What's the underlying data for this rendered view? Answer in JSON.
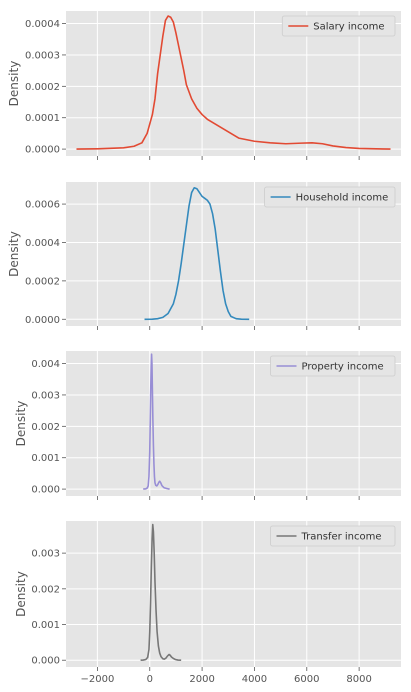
{
  "chart_data": [
    {
      "type": "line",
      "ylabel": "Density",
      "ylim": [
        -2.2e-05,
        0.00044
      ],
      "yticks": [
        0.0,
        0.0001,
        0.0002,
        0.0003,
        0.0004
      ],
      "ytick_labels": [
        "0.0000",
        "0.0001",
        "0.0002",
        "0.0003",
        "0.0004"
      ],
      "legend_position": "top-right",
      "grid": true,
      "series": [
        {
          "name": "Salary income",
          "color": "#E24A33",
          "points": [
            [
              -2800,
              0.0
            ],
            [
              -2000,
              1e-06
            ],
            [
              -1000,
              4e-06
            ],
            [
              -600,
              9e-06
            ],
            [
              -300,
              2e-05
            ],
            [
              -100,
              5e-05
            ],
            [
              100,
              0.00011
            ],
            [
              200,
              0.00016
            ],
            [
              300,
              0.00024
            ],
            [
              400,
              0.0003
            ],
            [
              500,
              0.00036
            ],
            [
              600,
              0.00041
            ],
            [
              700,
              0.000424
            ],
            [
              800,
              0.00042
            ],
            [
              900,
              0.000405
            ],
            [
              1000,
              0.00037
            ],
            [
              1100,
              0.00033
            ],
            [
              1200,
              0.00029
            ],
            [
              1300,
              0.00025
            ],
            [
              1400,
              0.000205
            ],
            [
              1600,
              0.00016
            ],
            [
              1800,
              0.00013
            ],
            [
              2000,
              0.00011
            ],
            [
              2200,
              9.5e-05
            ],
            [
              2600,
              7.5e-05
            ],
            [
              3000,
              5.5e-05
            ],
            [
              3400,
              3.5e-05
            ],
            [
              4000,
              2.5e-05
            ],
            [
              4600,
              2e-05
            ],
            [
              5200,
              1.7e-05
            ],
            [
              5800,
              1.9e-05
            ],
            [
              6200,
              2e-05
            ],
            [
              6600,
              1.7e-05
            ],
            [
              7000,
              1e-05
            ],
            [
              7500,
              5e-06
            ],
            [
              8000,
              2e-06
            ],
            [
              9200,
              0.0
            ]
          ]
        }
      ]
    },
    {
      "type": "line",
      "ylabel": "Density",
      "ylim": [
        -3.5e-05,
        0.000715
      ],
      "yticks": [
        0.0,
        0.0002,
        0.0004,
        0.0006
      ],
      "ytick_labels": [
        "0.0000",
        "0.0002",
        "0.0004",
        "0.0006"
      ],
      "legend_position": "top-right",
      "grid": true,
      "series": [
        {
          "name": "Household income",
          "color": "#348ABD",
          "points": [
            [
              -200,
              0.0
            ],
            [
              100,
              5e-07
            ],
            [
              300,
              3e-06
            ],
            [
              500,
              1e-05
            ],
            [
              700,
              3e-05
            ],
            [
              900,
              8e-05
            ],
            [
              1000,
              0.00013
            ],
            [
              1100,
              0.0002
            ],
            [
              1200,
              0.00029
            ],
            [
              1300,
              0.00039
            ],
            [
              1400,
              0.00049
            ],
            [
              1500,
              0.00059
            ],
            [
              1600,
              0.00066
            ],
            [
              1700,
              0.000685
            ],
            [
              1800,
              0.00068
            ],
            [
              1900,
              0.00066
            ],
            [
              2000,
              0.00064
            ],
            [
              2100,
              0.00063
            ],
            [
              2200,
              0.00062
            ],
            [
              2300,
              0.0006
            ],
            [
              2400,
              0.00055
            ],
            [
              2500,
              0.00047
            ],
            [
              2600,
              0.00036
            ],
            [
              2700,
              0.00025
            ],
            [
              2800,
              0.00015
            ],
            [
              2900,
              8e-05
            ],
            [
              3000,
              4e-05
            ],
            [
              3100,
              1.5e-05
            ],
            [
              3300,
              3e-06
            ],
            [
              3500,
              5e-07
            ],
            [
              3800,
              0.0
            ]
          ]
        }
      ]
    },
    {
      "type": "line",
      "ylabel": "Density",
      "ylim": [
        -0.00022,
        0.0044
      ],
      "yticks": [
        0.0,
        0.001,
        0.002,
        0.003,
        0.004
      ],
      "ytick_labels": [
        "0.000",
        "0.001",
        "0.002",
        "0.003",
        "0.004"
      ],
      "legend_position": "top-right",
      "grid": true,
      "series": [
        {
          "name": "Property income",
          "color": "#988ED5",
          "points": [
            [
              -250,
              0.0
            ],
            [
              -150,
              1e-05
            ],
            [
              -100,
              3e-05
            ],
            [
              -60,
              0.0001
            ],
            [
              -30,
              0.0004
            ],
            [
              0,
              0.0012
            ],
            [
              20,
              0.0022
            ],
            [
              40,
              0.0033
            ],
            [
              55,
              0.0039
            ],
            [
              70,
              0.0043
            ],
            [
              85,
              0.004
            ],
            [
              100,
              0.0032
            ],
            [
              120,
              0.0022
            ],
            [
              140,
              0.0014
            ],
            [
              160,
              0.0008
            ],
            [
              180,
              0.0004
            ],
            [
              200,
              0.0002
            ],
            [
              230,
              0.00012
            ],
            [
              270,
              0.0001
            ],
            [
              310,
              0.00015
            ],
            [
              350,
              0.00022
            ],
            [
              380,
              0.00025
            ],
            [
              420,
              0.0002
            ],
            [
              460,
              0.00012
            ],
            [
              500,
              8e-05
            ],
            [
              550,
              4e-05
            ],
            [
              600,
              3e-05
            ],
            [
              650,
              2e-05
            ],
            [
              700,
              1e-05
            ],
            [
              760,
              0.0
            ]
          ]
        }
      ]
    },
    {
      "type": "line",
      "ylabel": "Density",
      "xlim": [
        -3200,
        9600
      ],
      "xticks": [
        -2000,
        0,
        2000,
        4000,
        6000,
        8000
      ],
      "xtick_labels": [
        "−2000",
        "0",
        "2000",
        "4000",
        "6000",
        "8000"
      ],
      "ylim": [
        -0.00019,
        0.0039
      ],
      "yticks": [
        0.0,
        0.001,
        0.002,
        0.003
      ],
      "ytick_labels": [
        "0.000",
        "0.001",
        "0.002",
        "0.003"
      ],
      "legend_position": "top-right",
      "grid": true,
      "series": [
        {
          "name": "Transfer income",
          "color": "#777777",
          "points": [
            [
              -350,
              0.0
            ],
            [
              -250,
              5e-06
            ],
            [
              -150,
              2e-05
            ],
            [
              -80,
              8e-05
            ],
            [
              -30,
              0.0003
            ],
            [
              0,
              0.0008
            ],
            [
              30,
              0.0016
            ],
            [
              60,
              0.0026
            ],
            [
              90,
              0.0034
            ],
            [
              115,
              0.0038
            ],
            [
              140,
              0.0036
            ],
            [
              170,
              0.003
            ],
            [
              200,
              0.0022
            ],
            [
              240,
              0.0014
            ],
            [
              280,
              0.0008
            ],
            [
              330,
              0.0004
            ],
            [
              380,
              0.0002
            ],
            [
              430,
              0.0001
            ],
            [
              500,
              4e-05
            ],
            [
              560,
              3e-05
            ],
            [
              620,
              6e-05
            ],
            [
              680,
              0.00012
            ],
            [
              740,
              0.00016
            ],
            [
              780,
              0.00014
            ],
            [
              830,
              9e-05
            ],
            [
              900,
              5e-05
            ],
            [
              980,
              2e-05
            ],
            [
              1080,
              5e-06
            ],
            [
              1200,
              0.0
            ]
          ]
        }
      ]
    }
  ]
}
